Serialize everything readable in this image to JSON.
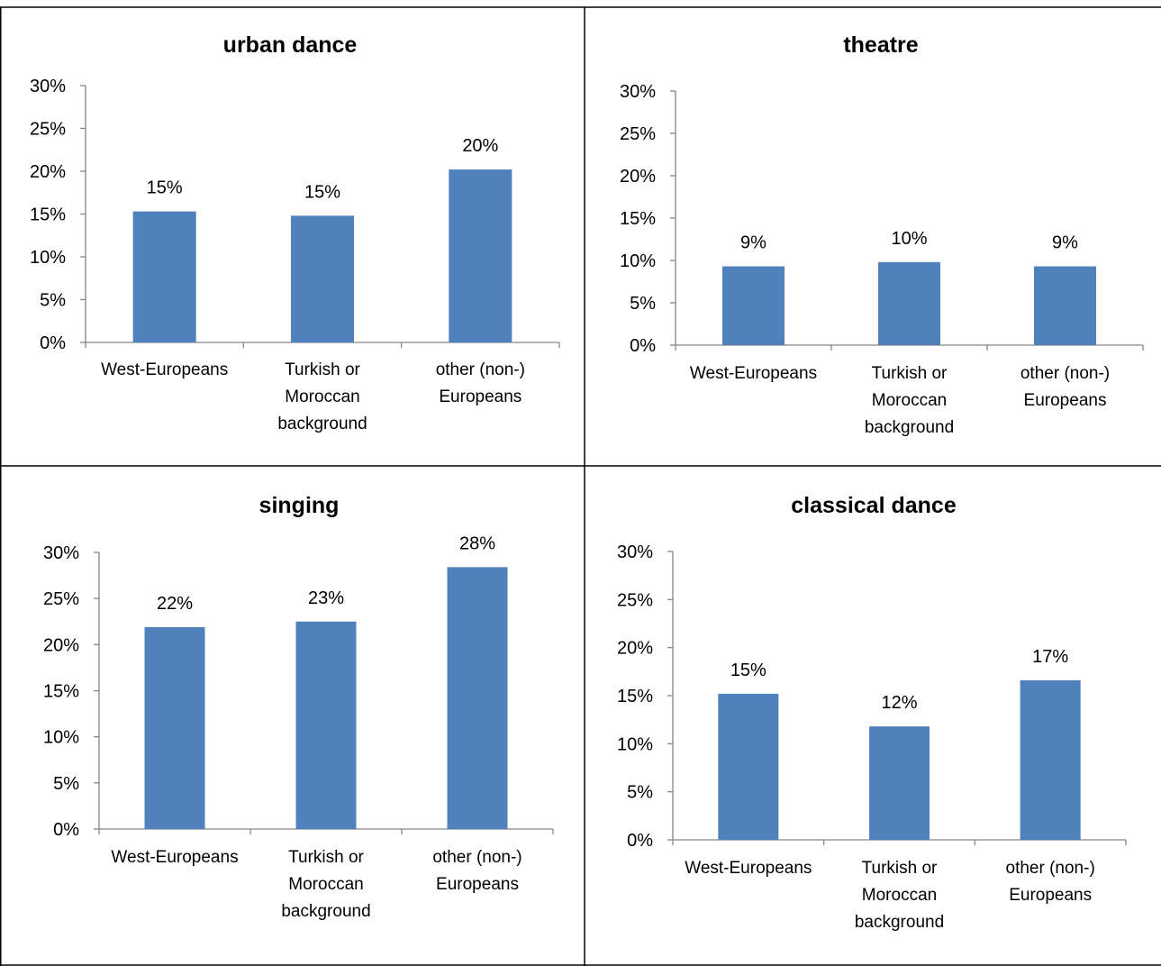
{
  "chart_data": [
    {
      "type": "bar",
      "title": "urban dance",
      "categories": [
        "West-Europeans",
        "Turkish or Moroccan background",
        "other (non-) Europeans"
      ],
      "category_lines": [
        [
          "West-Europeans"
        ],
        [
          "Turkish or",
          "Moroccan",
          "background"
        ],
        [
          "other (non-)",
          "Europeans"
        ]
      ],
      "values": [
        15.3,
        14.8,
        20.2
      ],
      "data_labels": [
        "15%",
        "15%",
        "20%"
      ],
      "ylim": [
        0,
        30
      ],
      "yticks": [
        0,
        5,
        10,
        15,
        20,
        25,
        30
      ],
      "ytick_labels": [
        "0%",
        "5%",
        "10%",
        "15%",
        "20%",
        "25%",
        "30%"
      ],
      "bar_color": "#4f81bd",
      "grid": false,
      "legend": "none"
    },
    {
      "type": "bar",
      "title": "theatre",
      "categories": [
        "West-Europeans",
        "Turkish or Moroccan background",
        "other (non-) Europeans"
      ],
      "category_lines": [
        [
          "West-Europeans"
        ],
        [
          "Turkish or",
          "Moroccan",
          "background"
        ],
        [
          "other (non-)",
          "Europeans"
        ]
      ],
      "values": [
        9.3,
        9.8,
        9.3
      ],
      "data_labels": [
        "9%",
        "10%",
        "9%"
      ],
      "ylim": [
        0,
        30
      ],
      "yticks": [
        0,
        5,
        10,
        15,
        20,
        25,
        30
      ],
      "ytick_labels": [
        "0%",
        "5%",
        "10%",
        "15%",
        "20%",
        "25%",
        "30%"
      ],
      "bar_color": "#4f81bd",
      "grid": false,
      "legend": "none"
    },
    {
      "type": "bar",
      "title": "singing",
      "categories": [
        "West-Europeans",
        "Turkish or Moroccan background",
        "other (non-) Europeans"
      ],
      "category_lines": [
        [
          "West-Europeans"
        ],
        [
          "Turkish or",
          "Moroccan",
          "background"
        ],
        [
          "other (non-)",
          "Europeans"
        ]
      ],
      "values": [
        21.9,
        22.5,
        28.4
      ],
      "data_labels": [
        "22%",
        "23%",
        "28%"
      ],
      "ylim": [
        0,
        30
      ],
      "yticks": [
        0,
        5,
        10,
        15,
        20,
        25,
        30
      ],
      "ytick_labels": [
        "0%",
        "5%",
        "10%",
        "15%",
        "20%",
        "25%",
        "30%"
      ],
      "bar_color": "#4f81bd",
      "grid": false,
      "legend": "none"
    },
    {
      "type": "bar",
      "title": "classical dance",
      "categories": [
        "West-Europeans",
        "Turkish or Moroccan background",
        "other (non-) Europeans"
      ],
      "category_lines": [
        [
          "West-Europeans"
        ],
        [
          "Turkish or",
          "Moroccan",
          "background"
        ],
        [
          "other (non-)",
          "Europeans"
        ]
      ],
      "values": [
        15.2,
        11.8,
        16.6
      ],
      "data_labels": [
        "15%",
        "12%",
        "17%"
      ],
      "ylim": [
        0,
        30
      ],
      "yticks": [
        0,
        5,
        10,
        15,
        20,
        25,
        30
      ],
      "ytick_labels": [
        "0%",
        "5%",
        "10%",
        "15%",
        "20%",
        "25%",
        "30%"
      ],
      "bar_color": "#4f81bd",
      "grid": false,
      "legend": "none"
    }
  ]
}
